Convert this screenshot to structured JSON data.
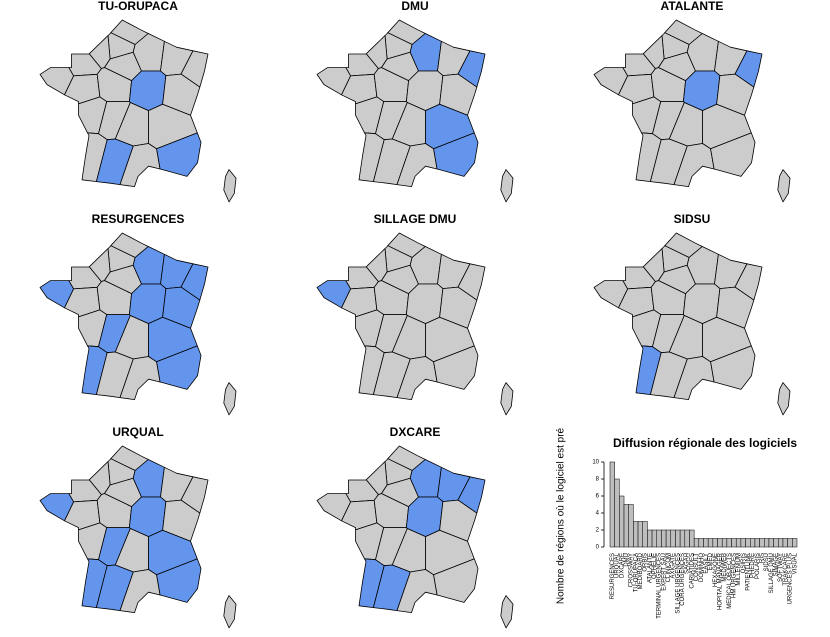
{
  "maps": [
    {
      "title": "TU-ORUPACA"
    },
    {
      "title": "DMU"
    },
    {
      "title": "ATALANTE"
    },
    {
      "title": "RESURGENCES"
    },
    {
      "title": "SILLAGE DMU"
    },
    {
      "title": "SIDSU"
    },
    {
      "title": "URQUAL"
    },
    {
      "title": "DXCARE"
    }
  ],
  "chart_data": {
    "type": "bar",
    "title": "Diffusion régionale des logiciels",
    "ylabel": "Nombre de régions où le logiciel est pré",
    "categories": [
      "RESURGENCES",
      "URQUAL",
      "DXCARE",
      "DMU",
      "CROSSWAY",
      "TU-ORUPACA",
      "MEDIBOARD",
      "ORBIS",
      "ATALANTE",
      "OPHELIE",
      "TERMINAL URGENCES",
      "EXPERT SAU",
      "CLINICOM",
      "AXIGATE",
      "SILLAGE URGENCES",
      "CORA URGENCES",
      "SAGAH",
      "CARIATIDES",
      "CONSULT",
      "DOMINHO",
      "EASILY",
      "EMED",
      "HEXAGONE",
      "HOPITAL MANAGER",
      "MEDIWEB",
      "MEDICAL OBJECTS",
      "HM URGENCES",
      "MILLENIUM",
      "OSIRIS",
      "PATIENTLINK",
      "PHEDRE",
      "POLARIS",
      "RIS",
      "SIDSU",
      "SILLAGE DMU",
      "SIMAGE",
      "SOFTWAY",
      "TRAKCARE",
      "URGENCES PLUS",
      "VISUAL"
    ],
    "values": [
      10,
      8,
      6,
      5,
      5,
      3,
      3,
      3,
      2,
      2,
      2,
      2,
      2,
      2,
      2,
      2,
      2,
      2,
      1,
      1,
      1,
      1,
      1,
      1,
      1,
      1,
      1,
      1,
      1,
      1,
      1,
      1,
      1,
      1,
      1,
      1,
      1,
      1,
      1,
      1
    ],
    "color": "#bebebe",
    "ylim": [
      0,
      10
    ],
    "yticks": [
      0,
      2,
      4,
      6,
      8,
      10
    ]
  }
}
